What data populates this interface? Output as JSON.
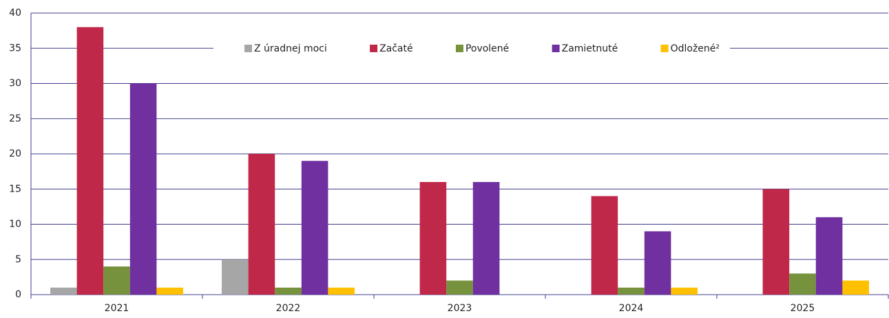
{
  "chart_data": {
    "type": "bar",
    "categories": [
      "2021",
      "2022",
      "2023",
      "2024",
      "2025"
    ],
    "series": [
      {
        "name": "Z úradnej moci",
        "color": "#a6a6a6",
        "values": [
          1,
          5,
          0,
          0,
          0
        ]
      },
      {
        "name": "Začaté",
        "color": "#c0284a",
        "values": [
          38,
          20,
          16,
          14,
          15
        ]
      },
      {
        "name": "Povolené",
        "color": "#76923c",
        "values": [
          4,
          1,
          2,
          1,
          3
        ]
      },
      {
        "name": "Zamietnuté",
        "color": "#7030a0",
        "values": [
          30,
          19,
          16,
          9,
          11
        ]
      },
      {
        "name": "Odložené²",
        "color": "#ffc000",
        "values": [
          1,
          1,
          0,
          1,
          2
        ]
      }
    ],
    "ylim": [
      0,
      40
    ],
    "yticks": [
      0,
      5,
      10,
      15,
      20,
      25,
      30,
      35,
      40
    ],
    "grid": true,
    "legend": "top"
  }
}
